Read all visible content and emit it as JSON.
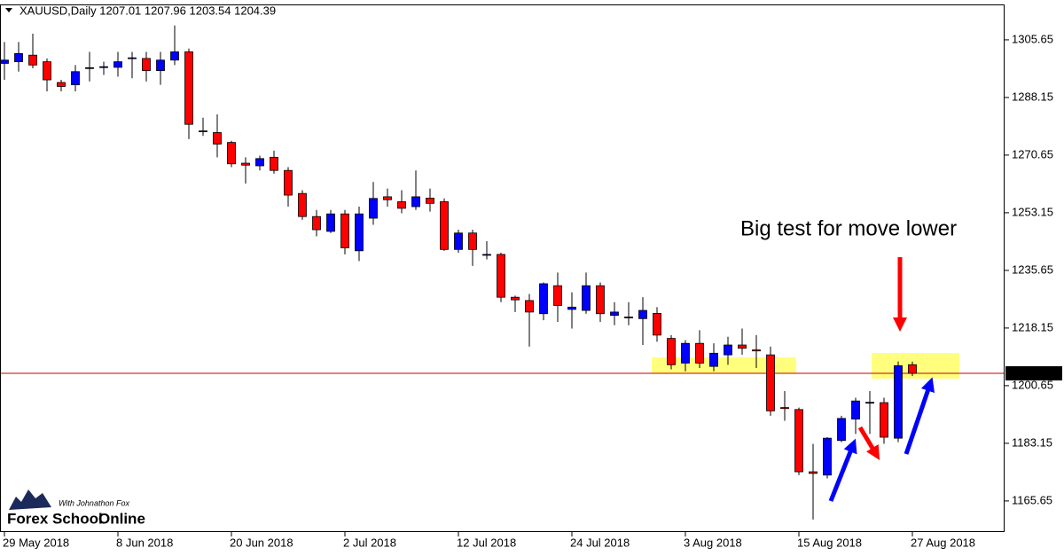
{
  "chart_data": {
    "type": "candlestick",
    "title": "XAUUSD,Daily  1207.01 1207.96 1203.54 1204.39",
    "annotation": "Big test for move lower",
    "logo": {
      "tagline": "With Johnathon Fox",
      "name": "Forex School",
      "name_accent": "Online"
    },
    "categories": [
      "29 May 2018",
      null,
      null,
      null,
      null,
      null,
      null,
      null,
      "8 Jun 2018",
      null,
      null,
      null,
      null,
      null,
      null,
      null,
      "20 Jun 2018",
      null,
      null,
      null,
      null,
      null,
      null,
      null,
      "2 Jul 2018",
      null,
      null,
      null,
      null,
      null,
      null,
      null,
      "12 Jul 2018",
      null,
      null,
      null,
      null,
      null,
      null,
      null,
      "24 Jul 2018",
      null,
      null,
      null,
      null,
      null,
      null,
      null,
      "3 Aug 2018",
      null,
      null,
      null,
      null,
      null,
      null,
      null,
      "15 Aug 2018",
      null,
      null,
      null,
      null,
      null,
      null,
      null,
      "27 Aug 2018"
    ],
    "open": [
      1298.5,
      1299,
      1301,
      1299,
      1292.7,
      1292,
      1297,
      1297.3,
      1297.3,
      1300,
      1300,
      1296.3,
      1299.5,
      1302,
      1278,
      1277.5,
      1274.5,
      1268.2,
      1267.4,
      1270,
      1266,
      1259,
      1252,
      1247.5,
      1252.8,
      1241.6,
      1251.5,
      1258,
      1256.5,
      1255,
      1257.6,
      1256.5,
      1242,
      1247,
      1240.5,
      1240.5,
      1227.5,
      1226.5,
      1222.5,
      1231,
      1223.8,
      1223.5,
      1231,
      1222,
      1221.5,
      1221,
      1222.6,
      1215,
      1207.5,
      1213.5,
      1206.5,
      1210,
      1213,
      1211.5,
      1210,
      1194,
      1193.4,
      1174.5,
      1173.5,
      1184,
      1190.5,
      1195.5,
      1195.5,
      1184.7,
      1207.01
    ],
    "high": [
      1305,
      1305,
      1307.5,
      1300,
      1293.5,
      1298,
      1302,
      1299,
      1302,
      1302,
      1302,
      1302,
      1310,
      1303,
      1282,
      1283,
      1275,
      1270,
      1270.5,
      1272,
      1267,
      1260,
      1254,
      1254,
      1254,
      1255,
      1262.5,
      1260.5,
      1260,
      1266,
      1260.5,
      1257.5,
      1248,
      1248,
      1244.5,
      1241,
      1228,
      1228.5,
      1232,
      1235,
      1229,
      1235,
      1232,
      1226,
      1226,
      1227.5,
      1224.5,
      1216,
      1214.5,
      1217.5,
      1213.5,
      1215.5,
      1218,
      1216,
      1212.5,
      1199,
      1194,
      1183,
      1185,
      1191.5,
      1197,
      1199,
      1197,
      1208,
      1207.96
    ],
    "low": [
      1293.5,
      1296,
      1297,
      1290,
      1290,
      1290,
      1293,
      1295,
      1294.5,
      1294,
      1293,
      1292,
      1298,
      1275.5,
      1276.5,
      1270,
      1267,
      1262,
      1266,
      1265,
      1255,
      1251,
      1246,
      1247,
      1240.5,
      1238.5,
      1249.5,
      1255,
      1253,
      1254,
      1253.5,
      1241.6,
      1241,
      1237,
      1239,
      1226,
      1223,
      1212.5,
      1220.5,
      1220,
      1218,
      1222.5,
      1220,
      1219,
      1219,
      1213,
      1214,
      1205.6,
      1205,
      1206,
      1205,
      1207,
      1210,
      1206,
      1191.5,
      1190,
      1173.5,
      1160,
      1172.5,
      1183.5,
      1186,
      1186,
      1183,
      1183.5,
      1203.54
    ],
    "close": [
      1299.5,
      1301.5,
      1298,
      1293.5,
      1291.5,
      1296,
      1297.2,
      1297.5,
      1299,
      1300.2,
      1296.3,
      1299.5,
      1302,
      1280,
      1277.8,
      1274,
      1268,
      1267.6,
      1269.6,
      1266,
      1258.5,
      1252,
      1248,
      1252.8,
      1242.5,
      1252.8,
      1257.5,
      1257.1,
      1254.5,
      1258,
      1256,
      1242,
      1247,
      1242,
      1240.5,
      1227.5,
      1226.7,
      1223,
      1231.6,
      1225,
      1224.5,
      1231,
      1222.5,
      1223,
      1221.4,
      1223.5,
      1216,
      1207,
      1213.5,
      1207.5,
      1210.5,
      1213,
      1212,
      1211.2,
      1193,
      1193.7,
      1174.5,
      1174,
      1184.7,
      1190.7,
      1196,
      1195.6,
      1185,
      1206.7,
      1204.39
    ],
    "up_color": "#0000ff",
    "down_color": "#ff0000",
    "current_price": 1204.39,
    "current_price_color": "#c00000",
    "ylim": [
      1156.2,
      1316.4
    ],
    "yticks": [
      1305.65,
      1288.15,
      1270.65,
      1253.15,
      1235.65,
      1218.15,
      1200.65,
      1183.15,
      1165.65
    ],
    "grid": false
  }
}
